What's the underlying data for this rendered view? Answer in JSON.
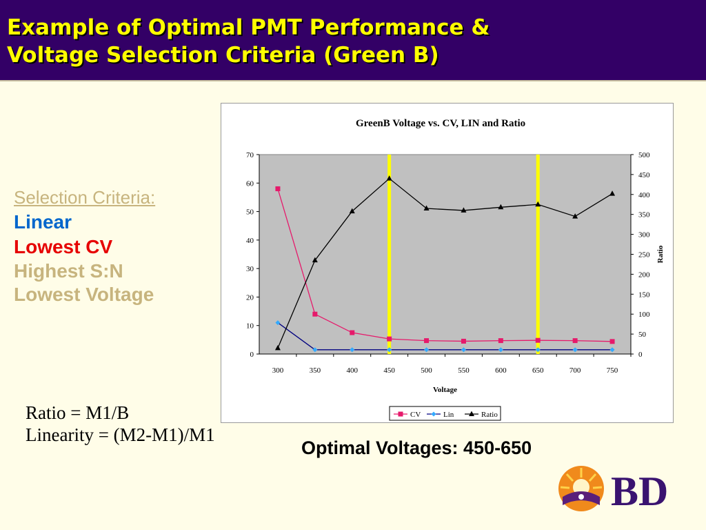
{
  "title": {
    "line1": "Example of Optimal PMT Performance &",
    "line2": "Voltage Selection Criteria (Green B)"
  },
  "criteria": {
    "heading": "Selection Criteria:",
    "items": [
      "Linear",
      "Lowest CV",
      "Highest S:N",
      "Lowest Voltage"
    ]
  },
  "formulas": [
    "Ratio = M1/B",
    "Linearity = (M2-M1)/M1"
  ],
  "optimal_text": "Optimal Voltages: 450-650",
  "logo_text": "BD",
  "colors": {
    "title_bg": "#330066",
    "title_text": "#ffff00",
    "slide_bg": "#fffde8",
    "plot_bg": "#c0c0c0",
    "highlight": "#ffff00",
    "cv": "#e6196b",
    "lin": "#000080",
    "lin_marker": "#33aaff",
    "ratio": "#000000"
  },
  "chart_data": {
    "type": "line",
    "title": "GreenB Voltage vs. CV, LIN and Ratio",
    "xlabel": "Voltage",
    "ylabel_left": "",
    "ylabel_right": "Ratio",
    "categories": [
      300,
      350,
      400,
      450,
      500,
      550,
      600,
      650,
      700,
      750
    ],
    "ylim_left": [
      0,
      70
    ],
    "yticks_left": [
      0,
      10,
      20,
      30,
      40,
      50,
      60,
      70
    ],
    "ylim_right": [
      0,
      500
    ],
    "yticks_right": [
      0,
      50,
      100,
      150,
      200,
      250,
      300,
      350,
      400,
      450,
      500
    ],
    "highlight_voltages": [
      450,
      650
    ],
    "legend_position": "bottom",
    "series": [
      {
        "name": "CV",
        "axis": "left",
        "marker": "square",
        "values": [
          58,
          14,
          7.5,
          5.3,
          4.7,
          4.5,
          4.7,
          4.8,
          4.7,
          4.4
        ]
      },
      {
        "name": "Lin",
        "axis": "left",
        "marker": "diamond",
        "values": [
          11,
          1.5,
          1.5,
          1.5,
          1.5,
          1.5,
          1.5,
          1.5,
          1.5,
          1.5
        ]
      },
      {
        "name": "Ratio",
        "axis": "right",
        "marker": "triangle",
        "values": [
          15,
          235,
          358,
          440,
          365,
          360,
          368,
          375,
          345,
          402
        ]
      }
    ]
  }
}
